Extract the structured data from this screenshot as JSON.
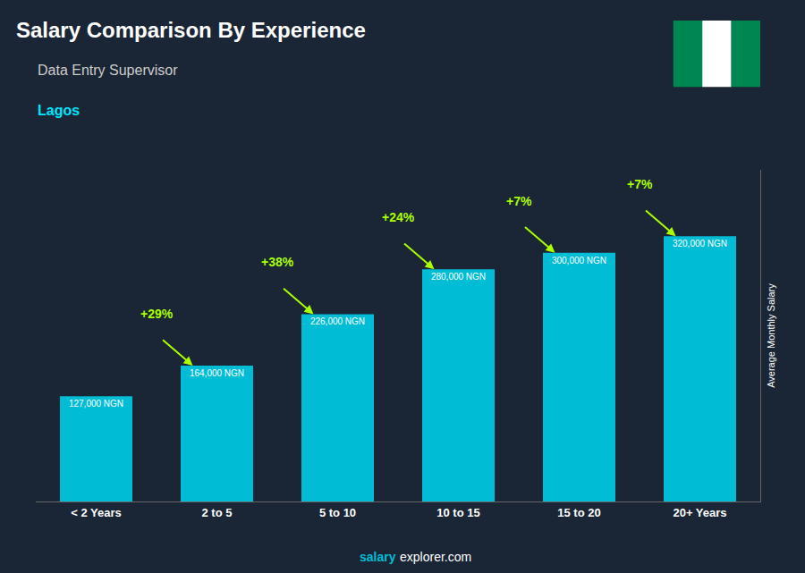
{
  "chart_data": {
    "type": "bar",
    "title": "Salary Comparison By Experience",
    "subtitle": "Data Entry Supervisor",
    "location": "Lagos",
    "ylabel": "Average Monthly Salary",
    "categories": [
      "< 2 Years",
      "2 to 5",
      "5 to 10",
      "10 to 15",
      "15 to 20",
      "20+ Years"
    ],
    "values": [
      127000,
      164000,
      226000,
      280000,
      300000,
      320000
    ],
    "value_labels": [
      "127,000 NGN",
      "164,000 NGN",
      "226,000 NGN",
      "280,000 NGN",
      "300,000 NGN",
      "320,000 NGN"
    ],
    "data_labels": true,
    "annotations": [
      "+29%",
      "+38%",
      "+24%",
      "+7%",
      "+7%"
    ],
    "footer": [
      "salary",
      "explorer.com"
    ],
    "color": "#00bcd4",
    "ylim": [
      0,
      400000
    ],
    "tick_labels": "x",
    "grid": false
  }
}
